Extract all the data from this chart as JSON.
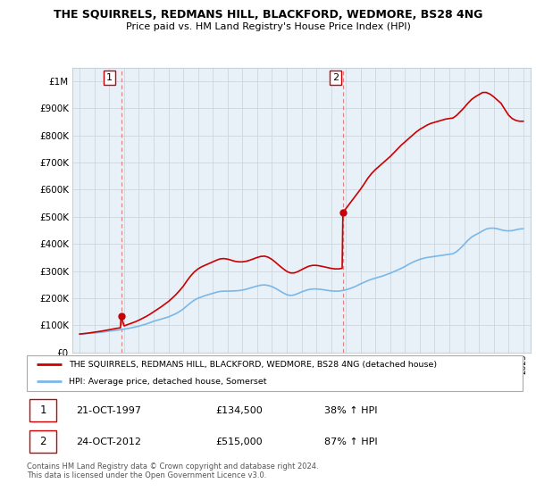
{
  "title": "THE SQUIRRELS, REDMANS HILL, BLACKFORD, WEDMORE, BS28 4NG",
  "subtitle": "Price paid vs. HM Land Registry's House Price Index (HPI)",
  "legend_line1": "THE SQUIRRELS, REDMANS HILL, BLACKFORD, WEDMORE, BS28 4NG (detached house)",
  "legend_line2": "HPI: Average price, detached house, Somerset",
  "annotation1_label": "1",
  "annotation1_date": "21-OCT-1997",
  "annotation1_price": "£134,500",
  "annotation1_hpi": "38% ↑ HPI",
  "annotation1_year": 1997.8,
  "annotation1_value": 134500,
  "annotation2_label": "2",
  "annotation2_date": "24-OCT-2012",
  "annotation2_price": "£515,000",
  "annotation2_hpi": "87% ↑ HPI",
  "annotation2_year": 2012.8,
  "annotation2_value": 515000,
  "hpi_color": "#7ab8e8",
  "price_color": "#cc0000",
  "vline_color": "#e08080",
  "grid_color": "#c8d0d8",
  "chart_bg": "#e8f0f8",
  "bg_color": "#ffffff",
  "ylim": [
    0,
    1050000
  ],
  "xlim": [
    1994.5,
    2025.5
  ],
  "footer": "Contains HM Land Registry data © Crown copyright and database right 2024.\nThis data is licensed under the Open Government Licence v3.0.",
  "hpi_data": [
    [
      1995.0,
      68000
    ],
    [
      1995.25,
      69000
    ],
    [
      1995.5,
      70000
    ],
    [
      1995.75,
      71000
    ],
    [
      1996.0,
      72000
    ],
    [
      1996.25,
      73500
    ],
    [
      1996.5,
      75000
    ],
    [
      1996.75,
      77000
    ],
    [
      1997.0,
      79000
    ],
    [
      1997.25,
      80500
    ],
    [
      1997.5,
      82000
    ],
    [
      1997.75,
      84000
    ],
    [
      1998.0,
      86000
    ],
    [
      1998.25,
      88500
    ],
    [
      1998.5,
      91000
    ],
    [
      1998.75,
      94000
    ],
    [
      1999.0,
      97000
    ],
    [
      1999.25,
      101000
    ],
    [
      1999.5,
      105000
    ],
    [
      1999.75,
      110000
    ],
    [
      2000.0,
      115000
    ],
    [
      2000.25,
      119000
    ],
    [
      2000.5,
      123000
    ],
    [
      2000.75,
      127000
    ],
    [
      2001.0,
      131000
    ],
    [
      2001.25,
      137000
    ],
    [
      2001.5,
      143000
    ],
    [
      2001.75,
      151000
    ],
    [
      2002.0,
      160000
    ],
    [
      2002.25,
      172000
    ],
    [
      2002.5,
      183000
    ],
    [
      2002.75,
      193000
    ],
    [
      2003.0,
      200000
    ],
    [
      2003.25,
      205000
    ],
    [
      2003.5,
      210000
    ],
    [
      2003.75,
      214000
    ],
    [
      2004.0,
      218000
    ],
    [
      2004.25,
      222000
    ],
    [
      2004.5,
      225000
    ],
    [
      2004.75,
      226000
    ],
    [
      2005.0,
      226000
    ],
    [
      2005.25,
      226500
    ],
    [
      2005.5,
      227000
    ],
    [
      2005.75,
      228000
    ],
    [
      2006.0,
      230000
    ],
    [
      2006.25,
      233000
    ],
    [
      2006.5,
      237000
    ],
    [
      2006.75,
      241000
    ],
    [
      2007.0,
      245000
    ],
    [
      2007.25,
      248000
    ],
    [
      2007.5,
      249000
    ],
    [
      2007.75,
      247000
    ],
    [
      2008.0,
      243000
    ],
    [
      2008.25,
      236000
    ],
    [
      2008.5,
      228000
    ],
    [
      2008.75,
      220000
    ],
    [
      2009.0,
      213000
    ],
    [
      2009.25,
      210000
    ],
    [
      2009.5,
      212000
    ],
    [
      2009.75,
      217000
    ],
    [
      2010.0,
      223000
    ],
    [
      2010.25,
      228000
    ],
    [
      2010.5,
      232000
    ],
    [
      2010.75,
      234000
    ],
    [
      2011.0,
      234000
    ],
    [
      2011.25,
      233000
    ],
    [
      2011.5,
      231000
    ],
    [
      2011.75,
      229000
    ],
    [
      2012.0,
      227000
    ],
    [
      2012.25,
      226000
    ],
    [
      2012.5,
      226000
    ],
    [
      2012.75,
      228000
    ],
    [
      2013.0,
      231000
    ],
    [
      2013.25,
      235000
    ],
    [
      2013.5,
      240000
    ],
    [
      2013.75,
      246000
    ],
    [
      2014.0,
      253000
    ],
    [
      2014.25,
      259000
    ],
    [
      2014.5,
      265000
    ],
    [
      2014.75,
      270000
    ],
    [
      2015.0,
      274000
    ],
    [
      2015.25,
      278000
    ],
    [
      2015.5,
      282000
    ],
    [
      2015.75,
      287000
    ],
    [
      2016.0,
      292000
    ],
    [
      2016.25,
      298000
    ],
    [
      2016.5,
      304000
    ],
    [
      2016.75,
      310000
    ],
    [
      2017.0,
      317000
    ],
    [
      2017.25,
      325000
    ],
    [
      2017.5,
      332000
    ],
    [
      2017.75,
      338000
    ],
    [
      2018.0,
      343000
    ],
    [
      2018.25,
      347000
    ],
    [
      2018.5,
      350000
    ],
    [
      2018.75,
      352000
    ],
    [
      2019.0,
      354000
    ],
    [
      2019.25,
      356000
    ],
    [
      2019.5,
      358000
    ],
    [
      2019.75,
      360000
    ],
    [
      2020.0,
      362000
    ],
    [
      2020.25,
      364000
    ],
    [
      2020.5,
      372000
    ],
    [
      2020.75,
      384000
    ],
    [
      2021.0,
      398000
    ],
    [
      2021.25,
      413000
    ],
    [
      2021.5,
      425000
    ],
    [
      2021.75,
      433000
    ],
    [
      2022.0,
      440000
    ],
    [
      2022.25,
      448000
    ],
    [
      2022.5,
      455000
    ],
    [
      2022.75,
      458000
    ],
    [
      2023.0,
      458000
    ],
    [
      2023.25,
      456000
    ],
    [
      2023.5,
      452000
    ],
    [
      2023.75,
      449000
    ],
    [
      2024.0,
      448000
    ],
    [
      2024.25,
      449000
    ],
    [
      2024.5,
      452000
    ],
    [
      2024.75,
      455000
    ],
    [
      2025.0,
      456000
    ]
  ],
  "price_data": [
    [
      1995.0,
      68000
    ],
    [
      1995.25,
      69500
    ],
    [
      1995.5,
      71000
    ],
    [
      1995.75,
      73000
    ],
    [
      1996.0,
      75000
    ],
    [
      1996.25,
      77000
    ],
    [
      1996.5,
      79000
    ],
    [
      1996.75,
      81500
    ],
    [
      1997.0,
      84000
    ],
    [
      1997.25,
      86500
    ],
    [
      1997.5,
      89000
    ],
    [
      1997.75,
      91000
    ],
    [
      1997.8,
      134500
    ],
    [
      1998.0,
      98000
    ],
    [
      1998.25,
      103000
    ],
    [
      1998.5,
      108000
    ],
    [
      1998.75,
      113000
    ],
    [
      1999.0,
      119000
    ],
    [
      1999.25,
      126000
    ],
    [
      1999.5,
      133000
    ],
    [
      1999.75,
      141000
    ],
    [
      2000.0,
      150000
    ],
    [
      2000.25,
      159000
    ],
    [
      2000.5,
      168000
    ],
    [
      2000.75,
      178000
    ],
    [
      2001.0,
      188000
    ],
    [
      2001.25,
      200000
    ],
    [
      2001.5,
      213000
    ],
    [
      2001.75,
      228000
    ],
    [
      2002.0,
      244000
    ],
    [
      2002.25,
      264000
    ],
    [
      2002.5,
      282000
    ],
    [
      2002.75,
      297000
    ],
    [
      2003.0,
      308000
    ],
    [
      2003.25,
      316000
    ],
    [
      2003.5,
      322000
    ],
    [
      2003.75,
      328000
    ],
    [
      2004.0,
      334000
    ],
    [
      2004.25,
      340000
    ],
    [
      2004.5,
      345000
    ],
    [
      2004.75,
      346000
    ],
    [
      2005.0,
      344000
    ],
    [
      2005.25,
      340000
    ],
    [
      2005.5,
      336000
    ],
    [
      2005.75,
      334000
    ],
    [
      2006.0,
      334000
    ],
    [
      2006.25,
      336000
    ],
    [
      2006.5,
      340000
    ],
    [
      2006.75,
      345000
    ],
    [
      2007.0,
      350000
    ],
    [
      2007.25,
      354000
    ],
    [
      2007.5,
      355000
    ],
    [
      2007.75,
      351000
    ],
    [
      2008.0,
      343000
    ],
    [
      2008.25,
      332000
    ],
    [
      2008.5,
      320000
    ],
    [
      2008.75,
      309000
    ],
    [
      2009.0,
      299000
    ],
    [
      2009.25,
      293000
    ],
    [
      2009.5,
      293000
    ],
    [
      2009.75,
      298000
    ],
    [
      2010.0,
      305000
    ],
    [
      2010.25,
      312000
    ],
    [
      2010.5,
      318000
    ],
    [
      2010.75,
      321000
    ],
    [
      2011.0,
      321000
    ],
    [
      2011.25,
      319000
    ],
    [
      2011.5,
      316000
    ],
    [
      2011.75,
      313000
    ],
    [
      2012.0,
      310000
    ],
    [
      2012.25,
      308000
    ],
    [
      2012.5,
      308000
    ],
    [
      2012.75,
      310000
    ],
    [
      2012.8,
      515000
    ],
    [
      2013.0,
      530000
    ],
    [
      2013.25,
      548000
    ],
    [
      2013.5,
      566000
    ],
    [
      2013.75,
      584000
    ],
    [
      2014.0,
      602000
    ],
    [
      2014.25,
      622000
    ],
    [
      2014.5,
      643000
    ],
    [
      2014.75,
      660000
    ],
    [
      2015.0,
      674000
    ],
    [
      2015.25,
      686000
    ],
    [
      2015.5,
      698000
    ],
    [
      2015.75,
      710000
    ],
    [
      2016.0,
      722000
    ],
    [
      2016.25,
      736000
    ],
    [
      2016.5,
      750000
    ],
    [
      2016.75,
      764000
    ],
    [
      2017.0,
      776000
    ],
    [
      2017.25,
      788000
    ],
    [
      2017.5,
      800000
    ],
    [
      2017.75,
      812000
    ],
    [
      2018.0,
      822000
    ],
    [
      2018.25,
      830000
    ],
    [
      2018.5,
      838000
    ],
    [
      2018.75,
      844000
    ],
    [
      2019.0,
      848000
    ],
    [
      2019.25,
      852000
    ],
    [
      2019.5,
      856000
    ],
    [
      2019.75,
      860000
    ],
    [
      2020.0,
      862000
    ],
    [
      2020.25,
      864000
    ],
    [
      2020.5,
      874000
    ],
    [
      2020.75,
      888000
    ],
    [
      2021.0,
      902000
    ],
    [
      2021.25,
      918000
    ],
    [
      2021.5,
      932000
    ],
    [
      2021.75,
      942000
    ],
    [
      2022.0,
      950000
    ],
    [
      2022.25,
      958000
    ],
    [
      2022.5,
      958000
    ],
    [
      2022.75,
      952000
    ],
    [
      2023.0,
      942000
    ],
    [
      2023.25,
      930000
    ],
    [
      2023.5,
      918000
    ],
    [
      2023.75,
      896000
    ],
    [
      2024.0,
      875000
    ],
    [
      2024.25,
      862000
    ],
    [
      2024.5,
      855000
    ],
    [
      2024.75,
      852000
    ],
    [
      2025.0,
      852000
    ]
  ]
}
